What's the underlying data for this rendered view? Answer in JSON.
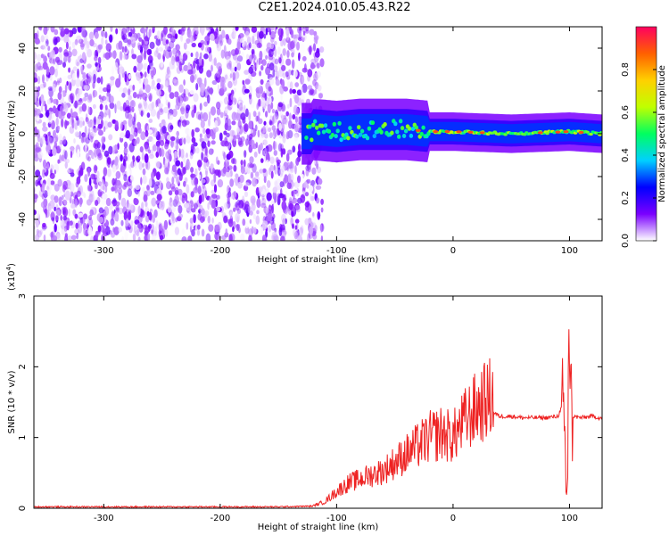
{
  "title": "C2E1.2024.010.05.43.R22",
  "chart_data": [
    {
      "type": "heatmap",
      "xlabel": "Height of straight line (km)",
      "ylabel": "Frequency (Hz)",
      "xlim": [
        -360,
        128
      ],
      "ylim": [
        -50,
        50
      ],
      "x_ticks": [
        -300,
        -200,
        -100,
        0,
        100
      ],
      "x_tick_labels": [
        "-300",
        "-200",
        "-100",
        "0",
        "100"
      ],
      "y_ticks": [
        -40,
        -20,
        0,
        20,
        40
      ],
      "y_tick_labels": [
        "-40",
        "-20",
        "0",
        "20",
        "40"
      ],
      "noise_region": {
        "x": [
          -360,
          -120
        ],
        "y": [
          -50,
          50
        ],
        "amplitude": [
          0.0,
          0.15
        ]
      },
      "signal_band": {
        "x": [
          -130,
          128
        ],
        "center_frequency": [
          {
            "x": -120,
            "y": 2
          },
          {
            "x": -100,
            "y": 1
          },
          {
            "x": -80,
            "y": 2
          },
          {
            "x": -60,
            "y": 2
          },
          {
            "x": -40,
            "y": 2
          },
          {
            "x": -20,
            "y": 1
          },
          {
            "x": 0,
            "y": 1
          },
          {
            "x": 50,
            "y": 0
          },
          {
            "x": 100,
            "y": 1
          },
          {
            "x": 128,
            "y": 0
          }
        ],
        "peak_amplitude": 0.9
      },
      "colorbar": {
        "label": "Normalized spectral amplitude",
        "range": [
          0,
          1
        ],
        "ticks": [
          0.0,
          0.2,
          0.4,
          0.6,
          0.8
        ],
        "tick_labels": [
          "0.0",
          "0.2",
          "0.4",
          "0.6",
          "0.8"
        ],
        "colors": [
          "#ffffff",
          "#7a00ff",
          "#0000ff",
          "#00d0ff",
          "#00ff60",
          "#c0ff00",
          "#ffd000",
          "#ff6000",
          "#ff0060"
        ]
      },
      "grid": false
    },
    {
      "type": "line",
      "xlabel": "Height of straight line (km)",
      "ylabel": "SNR (10 * v/v)",
      "y_multiplier": "(x10",
      "y_multiplier_exp": "4",
      "y_multiplier_close": ")",
      "xlim": [
        -360,
        128
      ],
      "ylim": [
        0,
        3
      ],
      "x_ticks": [
        -300,
        -200,
        -100,
        0,
        100
      ],
      "x_tick_labels": [
        "-300",
        "-200",
        "-100",
        "0",
        "100"
      ],
      "y_ticks": [
        0,
        1,
        2,
        3
      ],
      "y_tick_labels": [
        "0",
        "1",
        "2",
        "3"
      ],
      "color": "#ee2222",
      "series": [
        {
          "x": [
            -360,
            -300,
            -250,
            -200,
            -150,
            -120,
            -110,
            -100,
            -90,
            -80,
            -70,
            -60,
            -50,
            -40,
            -30,
            -20,
            -10,
            0,
            10,
            20,
            30,
            35,
            40,
            50,
            60,
            70,
            80,
            90,
            95,
            98,
            100,
            102,
            110,
            120,
            128
          ],
          "y": [
            0.02,
            0.02,
            0.02,
            0.02,
            0.02,
            0.03,
            0.08,
            0.2,
            0.3,
            0.35,
            0.4,
            0.45,
            0.55,
            0.65,
            0.75,
            0.85,
            0.9,
            0.85,
            1.05,
            1.2,
            1.3,
            1.35,
            1.3,
            1.3,
            1.28,
            1.28,
            1.28,
            1.3,
            1.5,
            0.2,
            2.5,
            1.3,
            1.28,
            1.3,
            1.27
          ]
        }
      ],
      "grid": false
    }
  ]
}
